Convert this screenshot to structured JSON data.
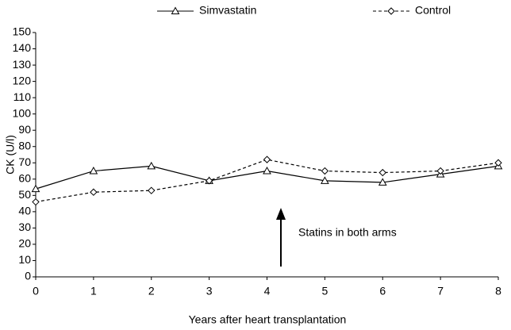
{
  "chart_data": {
    "type": "line",
    "xlabel": "Years after heart transplantation",
    "ylabel": "CK (U/l)",
    "annotation": "Statins in both arms",
    "x": [
      0,
      1,
      2,
      3,
      4,
      5,
      6,
      7,
      8
    ],
    "series": [
      {
        "name": "Simvastatin",
        "color": "#000000",
        "dash": "solid",
        "marker": "triangle",
        "values": [
          54,
          65,
          68,
          59,
          65,
          59,
          58,
          63,
          68
        ]
      },
      {
        "name": "Control",
        "color": "#000000",
        "dash": "dashed",
        "marker": "diamond",
        "values": [
          46,
          52,
          53,
          59,
          72,
          65,
          64,
          65,
          70
        ]
      }
    ],
    "xlim": [
      0,
      8
    ],
    "xticks": [
      0,
      1,
      2,
      3,
      4,
      5,
      6,
      7,
      8
    ],
    "ylim": [
      0,
      150
    ],
    "yticks": [
      0,
      10,
      20,
      30,
      40,
      50,
      60,
      70,
      80,
      90,
      100,
      110,
      120,
      130,
      140,
      150
    ],
    "grid": false,
    "legend": "top"
  }
}
